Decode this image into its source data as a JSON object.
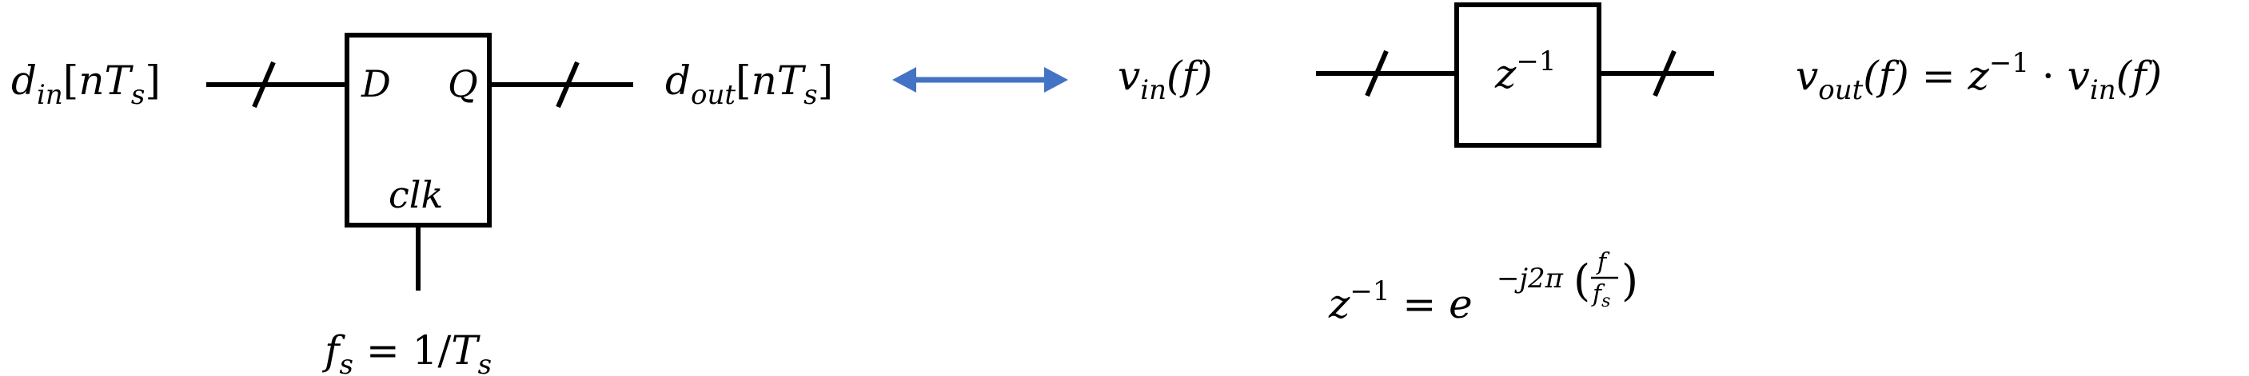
{
  "flipflop": {
    "input_base": "d",
    "input_sub": "in",
    "input_arg_open": "[",
    "input_arg_n": "n",
    "input_arg_T": "T",
    "input_arg_Tsub": "s",
    "input_arg_close": "]",
    "pin_d": "D",
    "pin_q": "Q",
    "pin_clk": "clk",
    "output_base": "d",
    "output_sub": "out",
    "output_arg_open": "[",
    "output_arg_n": "n",
    "output_arg_T": "T",
    "output_arg_Tsub": "s",
    "output_arg_close": "]",
    "clock_f": "f",
    "clock_fsub": "s",
    "clock_eq": " = 1/",
    "clock_T": "T",
    "clock_Tsub": "s"
  },
  "equivalence_arrow": {
    "color": "#4472C4"
  },
  "delay": {
    "input_base": "v",
    "input_sub": "in",
    "input_arg": "(f)",
    "block_z": "z",
    "block_exp": "−1",
    "output_base": "v",
    "output_sub": "out",
    "output_arg": "(f) = ",
    "output_z": "z",
    "output_exp": "−1",
    "output_dot": " · ",
    "output_v": "v",
    "output_vsub": "in",
    "output_varg": "(f)"
  },
  "definition": {
    "z": "z",
    "z_exp": "−1",
    "eq": " = ",
    "e": "e",
    "exp_prefix": "−j2π",
    "frac_num": "f",
    "frac_den": "f",
    "frac_den_sub": "s"
  }
}
